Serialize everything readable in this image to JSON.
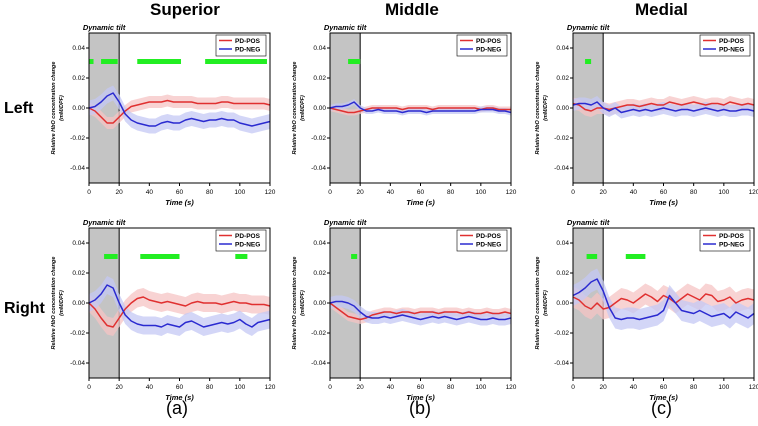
{
  "column_titles": [
    "Superior",
    "Middle",
    "Medial"
  ],
  "row_titles": [
    "Left",
    "Right"
  ],
  "panel_letters": [
    "(a)",
    "(b)",
    "(c)"
  ],
  "colors": {
    "pos": "#e03030",
    "neg": "#2a2ad0",
    "sig": "#22ee22",
    "shade": "#c4c4c4",
    "pos_band": "#f6c4c4",
    "neg_band": "#c4c8f4"
  },
  "chart_data": [
    {
      "type": "line",
      "id": "superior-left",
      "title": "Dynamic tilt",
      "xlabel": "Time (s)",
      "ylabel": "Relative HbO concentration change (mM/DPF)",
      "xlim": [
        0,
        120
      ],
      "ylim": [
        -0.05,
        0.05
      ],
      "x_ticks": [
        0,
        20,
        40,
        60,
        80,
        100,
        120
      ],
      "y_ticks": [
        -0.04,
        -0.02,
        0.0,
        0.02,
        0.04
      ],
      "x_tick_labels": [
        "0",
        "20",
        "40",
        "60",
        "80",
        "100",
        "120"
      ],
      "y_tick_labels": [
        "-0.04",
        "-0.02",
        "0.00",
        "0.02",
        "0.04"
      ],
      "shaded_region": [
        0,
        20
      ],
      "significance_bars": [
        [
          0,
          3
        ],
        [
          8,
          19
        ],
        [
          32,
          61
        ],
        [
          77,
          118
        ]
      ],
      "significance_y": 0.031,
      "x": [
        0,
        4,
        8,
        12,
        16,
        20,
        24,
        28,
        32,
        36,
        40,
        44,
        48,
        52,
        56,
        60,
        64,
        68,
        72,
        76,
        80,
        84,
        88,
        92,
        96,
        100,
        104,
        108,
        112,
        116,
        120
      ],
      "series": [
        {
          "name": "PD-POS",
          "values": [
            0.0,
            -0.002,
            -0.006,
            -0.01,
            -0.01,
            -0.006,
            -0.002,
            0.001,
            0.002,
            0.003,
            0.004,
            0.004,
            0.004,
            0.005,
            0.004,
            0.004,
            0.004,
            0.004,
            0.003,
            0.003,
            0.003,
            0.003,
            0.004,
            0.004,
            0.003,
            0.003,
            0.003,
            0.003,
            0.003,
            0.003,
            0.002
          ],
          "band": 0.004
        },
        {
          "name": "PD-NEG",
          "values": [
            0.0,
            0.001,
            0.004,
            0.008,
            0.01,
            0.004,
            -0.004,
            -0.008,
            -0.01,
            -0.011,
            -0.012,
            -0.012,
            -0.01,
            -0.009,
            -0.01,
            -0.01,
            -0.008,
            -0.007,
            -0.008,
            -0.009,
            -0.008,
            -0.008,
            -0.007,
            -0.008,
            -0.008,
            -0.01,
            -0.011,
            -0.012,
            -0.011,
            -0.01,
            -0.009
          ],
          "band": 0.005
        }
      ]
    },
    {
      "type": "line",
      "id": "middle-left",
      "title": "Dynamic tilt",
      "xlabel": "Time (s)",
      "ylabel": "Relative HbO concentration change (mM/DPF)",
      "xlim": [
        0,
        120
      ],
      "ylim": [
        -0.05,
        0.05
      ],
      "x_ticks": [
        0,
        20,
        40,
        60,
        80,
        100,
        120
      ],
      "y_ticks": [
        -0.04,
        -0.02,
        0.0,
        0.02,
        0.04
      ],
      "x_tick_labels": [
        "0",
        "20",
        "40",
        "60",
        "80",
        "100",
        "120"
      ],
      "y_tick_labels": [
        "-0.04",
        "-0.02",
        "0.00",
        "0.02",
        "0.04"
      ],
      "shaded_region": [
        0,
        20
      ],
      "significance_bars": [
        [
          12,
          20
        ]
      ],
      "significance_y": 0.031,
      "x": [
        0,
        4,
        8,
        12,
        16,
        20,
        24,
        28,
        32,
        36,
        40,
        44,
        48,
        52,
        56,
        60,
        64,
        68,
        72,
        76,
        80,
        84,
        88,
        92,
        96,
        100,
        104,
        108,
        112,
        116,
        120
      ],
      "series": [
        {
          "name": "PD-POS",
          "values": [
            0.0,
            -0.001,
            -0.002,
            -0.003,
            -0.003,
            -0.002,
            -0.001,
            0.0,
            0.0,
            0.0,
            0.0,
            0.0,
            -0.001,
            0.0,
            0.0,
            0.0,
            0.0,
            -0.001,
            0.0,
            0.0,
            0.0,
            0.0,
            0.0,
            0.0,
            0.0,
            -0.001,
            0.0,
            0.0,
            -0.001,
            -0.001,
            -0.001
          ],
          "band": 0.002
        },
        {
          "name": "PD-NEG",
          "values": [
            0.0,
            0.001,
            0.001,
            0.002,
            0.004,
            0.0,
            -0.002,
            -0.002,
            -0.001,
            -0.002,
            -0.002,
            -0.002,
            -0.003,
            -0.002,
            -0.002,
            -0.002,
            -0.003,
            -0.002,
            -0.002,
            -0.002,
            -0.002,
            -0.002,
            -0.002,
            -0.002,
            -0.002,
            -0.001,
            -0.001,
            -0.001,
            -0.002,
            -0.002,
            -0.003
          ],
          "band": 0.002
        }
      ]
    },
    {
      "type": "line",
      "id": "medial-left",
      "title": "Dynamic tilt",
      "xlabel": "Time (s)",
      "ylabel": "Relative HbO concentration change (mM/DPF)",
      "xlim": [
        0,
        120
      ],
      "ylim": [
        -0.05,
        0.05
      ],
      "x_ticks": [
        0,
        20,
        40,
        60,
        80,
        100,
        120
      ],
      "y_ticks": [
        -0.04,
        -0.02,
        0.0,
        0.02,
        0.04
      ],
      "x_tick_labels": [
        "0",
        "20",
        "40",
        "60",
        "80",
        "100",
        "120"
      ],
      "y_tick_labels": [
        "-0.04",
        "-0.02",
        "0.00",
        "0.02",
        "0.04"
      ],
      "shaded_region": [
        0,
        20
      ],
      "significance_bars": [
        [
          8,
          12
        ]
      ],
      "significance_y": 0.031,
      "x": [
        0,
        4,
        8,
        12,
        16,
        20,
        24,
        28,
        32,
        36,
        40,
        44,
        48,
        52,
        56,
        60,
        64,
        68,
        72,
        76,
        80,
        84,
        88,
        92,
        96,
        100,
        104,
        108,
        112,
        116,
        120
      ],
      "series": [
        {
          "name": "PD-POS",
          "values": [
            0.003,
            0.002,
            -0.001,
            -0.002,
            0.0,
            0.0,
            -0.001,
            0.0,
            0.001,
            0.002,
            0.002,
            0.001,
            0.002,
            0.003,
            0.002,
            0.002,
            0.004,
            0.003,
            0.002,
            0.003,
            0.004,
            0.003,
            0.002,
            0.003,
            0.003,
            0.002,
            0.004,
            0.003,
            0.002,
            0.003,
            0.002
          ],
          "band": 0.004
        },
        {
          "name": "PD-NEG",
          "values": [
            0.002,
            0.003,
            0.003,
            0.002,
            0.004,
            0.0,
            -0.002,
            0.0,
            -0.003,
            -0.002,
            -0.001,
            -0.002,
            -0.001,
            -0.002,
            -0.001,
            0.0,
            -0.001,
            -0.002,
            -0.001,
            -0.001,
            -0.002,
            -0.001,
            0.0,
            -0.001,
            -0.002,
            -0.001,
            -0.002,
            -0.002,
            -0.001,
            -0.001,
            -0.002
          ],
          "band": 0.004
        }
      ]
    },
    {
      "type": "line",
      "id": "superior-right",
      "title": "Dynamic tilt",
      "xlabel": "Time (s)",
      "ylabel": "Relative HbO concentration change (mM/DPF)",
      "xlim": [
        0,
        120
      ],
      "ylim": [
        -0.05,
        0.05
      ],
      "x_ticks": [
        0,
        20,
        40,
        60,
        80,
        100,
        120
      ],
      "y_ticks": [
        -0.04,
        -0.02,
        0.0,
        0.02,
        0.04
      ],
      "x_tick_labels": [
        "0",
        "20",
        "40",
        "60",
        "80",
        "100",
        "120"
      ],
      "y_tick_labels": [
        "-0.04",
        "-0.02",
        "0.00",
        "0.02",
        "0.04"
      ],
      "shaded_region": [
        0,
        20
      ],
      "significance_bars": [
        [
          10,
          19
        ],
        [
          34,
          60
        ],
        [
          97,
          105
        ]
      ],
      "significance_y": 0.031,
      "x": [
        0,
        4,
        8,
        12,
        16,
        20,
        24,
        28,
        32,
        36,
        40,
        44,
        48,
        52,
        56,
        60,
        64,
        68,
        72,
        76,
        80,
        84,
        88,
        92,
        96,
        100,
        104,
        108,
        112,
        116,
        120
      ],
      "series": [
        {
          "name": "PD-POS",
          "values": [
            0.0,
            -0.004,
            -0.01,
            -0.015,
            -0.016,
            -0.01,
            -0.004,
            0.0,
            0.003,
            0.004,
            0.002,
            0.001,
            0.0,
            0.001,
            0.0,
            -0.001,
            -0.002,
            0.0,
            0.001,
            0.0,
            0.0,
            0.0,
            -0.001,
            0.0,
            0.001,
            0.0,
            0.0,
            -0.001,
            -0.001,
            -0.001,
            -0.002
          ],
          "band": 0.006
        },
        {
          "name": "PD-NEG",
          "values": [
            0.0,
            0.002,
            0.006,
            0.012,
            0.01,
            0.0,
            -0.008,
            -0.012,
            -0.014,
            -0.015,
            -0.015,
            -0.015,
            -0.016,
            -0.014,
            -0.015,
            -0.016,
            -0.013,
            -0.012,
            -0.014,
            -0.016,
            -0.015,
            -0.014,
            -0.013,
            -0.014,
            -0.013,
            -0.011,
            -0.014,
            -0.016,
            -0.013,
            -0.012,
            -0.011
          ],
          "band": 0.006
        }
      ]
    },
    {
      "type": "line",
      "id": "middle-right",
      "title": "Dynamic tilt",
      "xlabel": "Time (s)",
      "ylabel": "Relative HbO concentration change (mM/DPF)",
      "xlim": [
        0,
        120
      ],
      "ylim": [
        -0.05,
        0.05
      ],
      "x_ticks": [
        0,
        20,
        40,
        60,
        80,
        100,
        120
      ],
      "y_ticks": [
        -0.04,
        -0.02,
        0.0,
        0.02,
        0.04
      ],
      "x_tick_labels": [
        "0",
        "20",
        "40",
        "60",
        "80",
        "100",
        "120"
      ],
      "y_tick_labels": [
        "-0.04",
        "-0.02",
        "0.00",
        "0.02",
        "0.04"
      ],
      "shaded_region": [
        0,
        20
      ],
      "significance_bars": [
        [
          14,
          18
        ]
      ],
      "significance_y": 0.031,
      "x": [
        0,
        4,
        8,
        12,
        16,
        20,
        24,
        28,
        32,
        36,
        40,
        44,
        48,
        52,
        56,
        60,
        64,
        68,
        72,
        76,
        80,
        84,
        88,
        92,
        96,
        100,
        104,
        108,
        112,
        116,
        120
      ],
      "series": [
        {
          "name": "PD-POS",
          "values": [
            0.0,
            -0.003,
            -0.006,
            -0.009,
            -0.01,
            -0.011,
            -0.01,
            -0.008,
            -0.007,
            -0.006,
            -0.006,
            -0.007,
            -0.006,
            -0.006,
            -0.007,
            -0.006,
            -0.006,
            -0.006,
            -0.007,
            -0.006,
            -0.006,
            -0.006,
            -0.007,
            -0.006,
            -0.007,
            -0.007,
            -0.006,
            -0.007,
            -0.007,
            -0.006,
            -0.007
          ],
          "band": 0.003
        },
        {
          "name": "PD-NEG",
          "values": [
            0.0,
            0.001,
            0.001,
            0.0,
            -0.002,
            -0.006,
            -0.009,
            -0.01,
            -0.01,
            -0.009,
            -0.01,
            -0.009,
            -0.008,
            -0.009,
            -0.01,
            -0.011,
            -0.01,
            -0.009,
            -0.01,
            -0.009,
            -0.01,
            -0.011,
            -0.01,
            -0.009,
            -0.01,
            -0.011,
            -0.011,
            -0.01,
            -0.011,
            -0.011,
            -0.01
          ],
          "band": 0.004
        }
      ]
    },
    {
      "type": "line",
      "id": "medial-right",
      "title": "Dynamic tilt",
      "xlabel": "Time (s)",
      "ylabel": "Relative HbO concentration change (mM/DPF)",
      "xlim": [
        0,
        120
      ],
      "ylim": [
        -0.05,
        0.05
      ],
      "x_ticks": [
        0,
        20,
        40,
        60,
        80,
        100,
        120
      ],
      "y_ticks": [
        -0.04,
        -0.02,
        0.0,
        0.02,
        0.04
      ],
      "x_tick_labels": [
        "0",
        "20",
        "40",
        "60",
        "80",
        "100",
        "120"
      ],
      "y_tick_labels": [
        "-0.04",
        "-0.02",
        "0.00",
        "0.02",
        "0.04"
      ],
      "shaded_region": [
        0,
        20
      ],
      "significance_bars": [
        [
          9,
          16
        ],
        [
          35,
          48
        ]
      ],
      "significance_y": 0.031,
      "x": [
        0,
        4,
        8,
        12,
        16,
        20,
        24,
        28,
        32,
        36,
        40,
        44,
        48,
        52,
        56,
        60,
        64,
        68,
        72,
        76,
        80,
        84,
        88,
        92,
        96,
        100,
        104,
        108,
        112,
        116,
        120
      ],
      "series": [
        {
          "name": "PD-POS",
          "values": [
            0.004,
            0.002,
            -0.002,
            -0.004,
            0.0,
            -0.004,
            -0.003,
            0.0,
            0.003,
            0.002,
            0.0,
            0.003,
            0.006,
            0.004,
            0.001,
            0.005,
            0.003,
            0.0,
            0.003,
            0.006,
            0.004,
            0.002,
            0.006,
            0.005,
            0.001,
            0.002,
            0.004,
            0.0,
            0.002,
            0.003,
            0.002
          ],
          "band": 0.007
        },
        {
          "name": "PD-NEG",
          "values": [
            0.005,
            0.007,
            0.01,
            0.014,
            0.016,
            0.008,
            -0.003,
            -0.01,
            -0.011,
            -0.01,
            -0.01,
            -0.011,
            -0.01,
            -0.009,
            -0.008,
            -0.005,
            0.005,
            0.0,
            -0.005,
            -0.006,
            -0.007,
            -0.005,
            -0.007,
            -0.009,
            -0.008,
            -0.007,
            -0.01,
            -0.006,
            -0.008,
            -0.01,
            -0.007
          ],
          "band": 0.007
        }
      ]
    }
  ]
}
